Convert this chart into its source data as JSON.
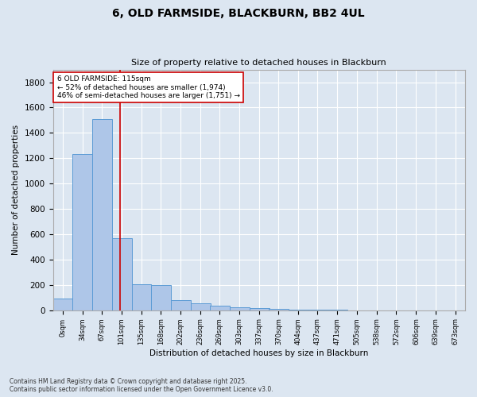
{
  "title": "6, OLD FARMSIDE, BLACKBURN, BB2 4UL",
  "subtitle": "Size of property relative to detached houses in Blackburn",
  "xlabel": "Distribution of detached houses by size in Blackburn",
  "ylabel": "Number of detached properties",
  "bar_color": "#aec6e8",
  "bar_edge_color": "#5b9bd5",
  "background_color": "#dce6f1",
  "annotation_box_color": "#ffffff",
  "annotation_box_edge": "#cc0000",
  "vline_color": "#cc0000",
  "vline_x": 115,
  "annotation_text": "6 OLD FARMSIDE: 115sqm\n← 52% of detached houses are smaller (1,974)\n46% of semi-detached houses are larger (1,751) →",
  "footer": "Contains HM Land Registry data © Crown copyright and database right 2025.\nContains public sector information licensed under the Open Government Licence v3.0.",
  "categories": [
    "0sqm",
    "34sqm",
    "67sqm",
    "101sqm",
    "135sqm",
    "168sqm",
    "202sqm",
    "236sqm",
    "269sqm",
    "303sqm",
    "337sqm",
    "370sqm",
    "404sqm",
    "437sqm",
    "471sqm",
    "505sqm",
    "538sqm",
    "572sqm",
    "606sqm",
    "639sqm",
    "673sqm"
  ],
  "bin_edges": [
    0,
    34,
    67,
    101,
    135,
    168,
    202,
    236,
    269,
    303,
    337,
    370,
    404,
    437,
    471,
    505,
    538,
    572,
    606,
    639,
    673
  ],
  "bar_heights": [
    90,
    1230,
    1510,
    570,
    205,
    200,
    80,
    55,
    35,
    25,
    15,
    10,
    5,
    3,
    2,
    1,
    1,
    0,
    0,
    0,
    0
  ],
  "ylim": [
    0,
    1900
  ],
  "yticks": [
    0,
    200,
    400,
    600,
    800,
    1000,
    1200,
    1400,
    1600,
    1800
  ]
}
